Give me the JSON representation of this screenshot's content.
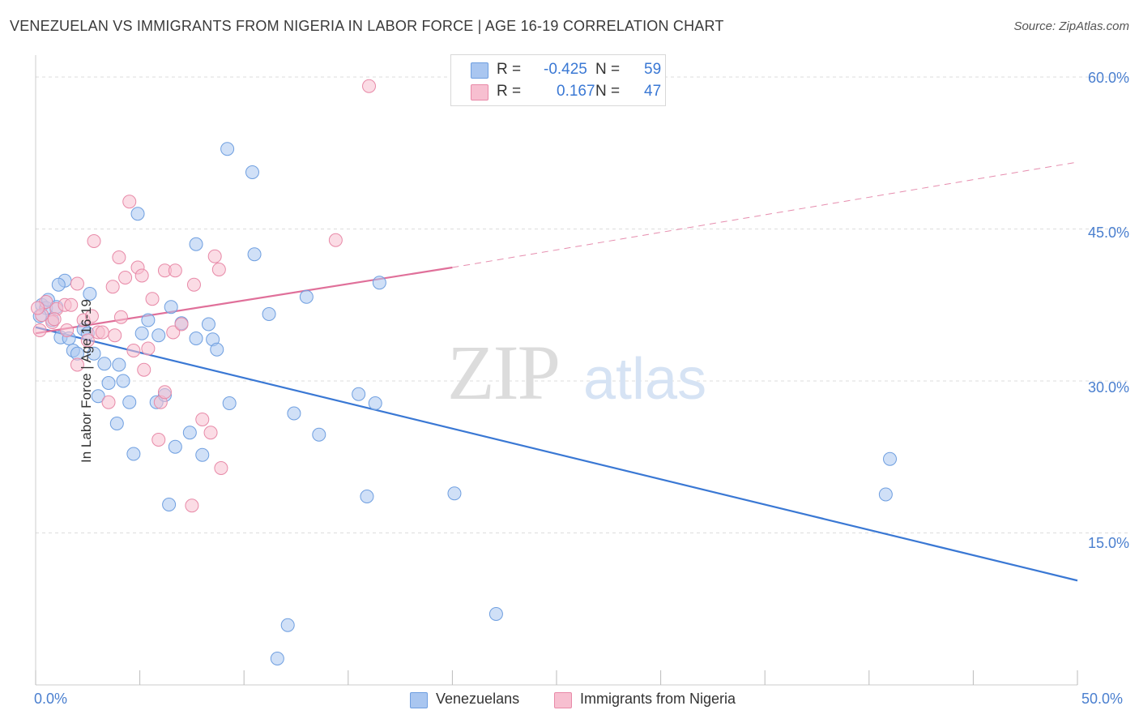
{
  "title": "VENEZUELAN VS IMMIGRANTS FROM NIGERIA IN LABOR FORCE | AGE 16-19 CORRELATION CHART",
  "source": "Source: ZipAtlas.com",
  "watermark": {
    "zip": "ZIP",
    "atlas": "atlas"
  },
  "legend": {
    "rows": [
      {
        "r_label": "R =",
        "r_value": "-0.425",
        "n_label": "N =",
        "n_value": "59",
        "color": "#a9c6f0",
        "border": "#6f9fe0"
      },
      {
        "r_label": "R =",
        "r_value": "0.167",
        "n_label": "N =",
        "n_value": "47",
        "color": "#f7bfd0",
        "border": "#e88aa8"
      }
    ]
  },
  "bottom_legend": {
    "venezuelans": "Venezuelans",
    "nigeria": "Immigrants from Nigeria"
  },
  "colors": {
    "blue": "#3a78d4",
    "pink": "#e0709a",
    "blue_fill": "#a9c6f0",
    "pink_fill": "#f7bfd0",
    "grid": "#dddddd",
    "tick_text": "#4a7fcf"
  },
  "chart_data": {
    "type": "scatter",
    "title": "VENEZUELAN VS IMMIGRANTS FROM NIGERIA IN LABOR FORCE | AGE 16-19 CORRELATION CHART",
    "xlabel": "",
    "ylabel": "In Labor Force | Age 16-19",
    "xlim": [
      0,
      50
    ],
    "ylim": [
      0,
      62
    ],
    "x_tick_labels": [
      "0.0%",
      "50.0%"
    ],
    "y_ticks": [
      15,
      30,
      45,
      60
    ],
    "y_tick_labels": [
      "15.0%",
      "30.0%",
      "45.0%",
      "60.0%"
    ],
    "series": [
      {
        "name": "Venezuelans",
        "color": "#3a78d4",
        "points": [
          [
            0.3,
            37.5
          ],
          [
            0.5,
            37.2
          ],
          [
            0.6,
            38.0
          ],
          [
            0.8,
            36.0
          ],
          [
            1.0,
            37.3
          ],
          [
            1.2,
            34.3
          ],
          [
            1.4,
            39.9
          ],
          [
            1.6,
            34.2
          ],
          [
            1.8,
            33.0
          ],
          [
            1.1,
            39.5
          ],
          [
            2.0,
            32.7
          ],
          [
            2.3,
            35.1
          ],
          [
            2.5,
            34.7
          ],
          [
            2.6,
            38.6
          ],
          [
            2.8,
            32.7
          ],
          [
            3.0,
            28.5
          ],
          [
            3.3,
            31.7
          ],
          [
            3.5,
            29.8
          ],
          [
            3.9,
            25.8
          ],
          [
            4.0,
            31.6
          ],
          [
            4.2,
            30.0
          ],
          [
            4.5,
            27.9
          ],
          [
            4.7,
            22.8
          ],
          [
            4.9,
            46.5
          ],
          [
            5.1,
            34.7
          ],
          [
            5.4,
            36.0
          ],
          [
            5.8,
            27.9
          ],
          [
            5.9,
            34.5
          ],
          [
            6.2,
            28.6
          ],
          [
            6.4,
            17.8
          ],
          [
            6.5,
            37.3
          ],
          [
            6.7,
            23.5
          ],
          [
            7.0,
            35.7
          ],
          [
            7.4,
            24.9
          ],
          [
            7.7,
            43.5
          ],
          [
            7.7,
            34.2
          ],
          [
            8.0,
            22.7
          ],
          [
            8.3,
            35.6
          ],
          [
            8.5,
            34.1
          ],
          [
            8.7,
            33.1
          ],
          [
            9.2,
            52.9
          ],
          [
            9.3,
            27.8
          ],
          [
            10.4,
            50.6
          ],
          [
            10.5,
            42.5
          ],
          [
            11.2,
            36.6
          ],
          [
            11.6,
            2.6
          ],
          [
            12.1,
            5.9
          ],
          [
            12.4,
            26.8
          ],
          [
            13.0,
            38.3
          ],
          [
            13.6,
            24.7
          ],
          [
            15.5,
            28.7
          ],
          [
            15.9,
            18.6
          ],
          [
            16.3,
            27.8
          ],
          [
            16.5,
            39.7
          ],
          [
            20.1,
            18.9
          ],
          [
            22.1,
            7.0
          ],
          [
            40.8,
            18.8
          ],
          [
            41.0,
            22.3
          ],
          [
            0.2,
            36.4
          ]
        ],
        "trend": {
          "x": [
            0,
            50
          ],
          "y": [
            35.3,
            10.3
          ]
        }
      },
      {
        "name": "Immigrants from Nigeria",
        "color": "#e0709a",
        "points": [
          [
            0.2,
            35.0
          ],
          [
            0.3,
            36.5
          ],
          [
            0.5,
            37.8
          ],
          [
            0.8,
            35.8
          ],
          [
            1.0,
            37.1
          ],
          [
            1.4,
            37.5
          ],
          [
            1.5,
            35.0
          ],
          [
            1.7,
            37.5
          ],
          [
            2.0,
            39.6
          ],
          [
            2.0,
            31.6
          ],
          [
            2.3,
            36.0
          ],
          [
            2.5,
            34.0
          ],
          [
            2.7,
            36.4
          ],
          [
            2.8,
            43.8
          ],
          [
            3.0,
            34.8
          ],
          [
            3.2,
            34.8
          ],
          [
            3.5,
            27.9
          ],
          [
            3.7,
            39.3
          ],
          [
            3.8,
            34.5
          ],
          [
            4.0,
            42.2
          ],
          [
            4.1,
            36.3
          ],
          [
            4.3,
            40.2
          ],
          [
            4.5,
            47.7
          ],
          [
            4.7,
            33.0
          ],
          [
            4.9,
            41.2
          ],
          [
            5.1,
            40.4
          ],
          [
            5.2,
            31.1
          ],
          [
            5.4,
            33.2
          ],
          [
            5.6,
            38.1
          ],
          [
            5.9,
            24.2
          ],
          [
            6.0,
            27.9
          ],
          [
            6.2,
            40.9
          ],
          [
            6.2,
            28.9
          ],
          [
            6.6,
            34.8
          ],
          [
            6.7,
            40.9
          ],
          [
            7.0,
            35.6
          ],
          [
            7.5,
            17.7
          ],
          [
            7.6,
            39.5
          ],
          [
            8.0,
            26.2
          ],
          [
            8.4,
            24.9
          ],
          [
            8.6,
            42.3
          ],
          [
            8.8,
            41.0
          ],
          [
            8.9,
            21.4
          ],
          [
            14.4,
            43.9
          ],
          [
            16.0,
            59.1
          ],
          [
            0.1,
            37.2
          ],
          [
            0.9,
            36.1
          ]
        ],
        "trend": {
          "x": [
            0,
            20
          ],
          "y": [
            34.7,
            41.2
          ]
        },
        "trend_dashed": {
          "x": [
            20,
            50
          ],
          "y": [
            41.2,
            51.6
          ]
        }
      }
    ]
  }
}
